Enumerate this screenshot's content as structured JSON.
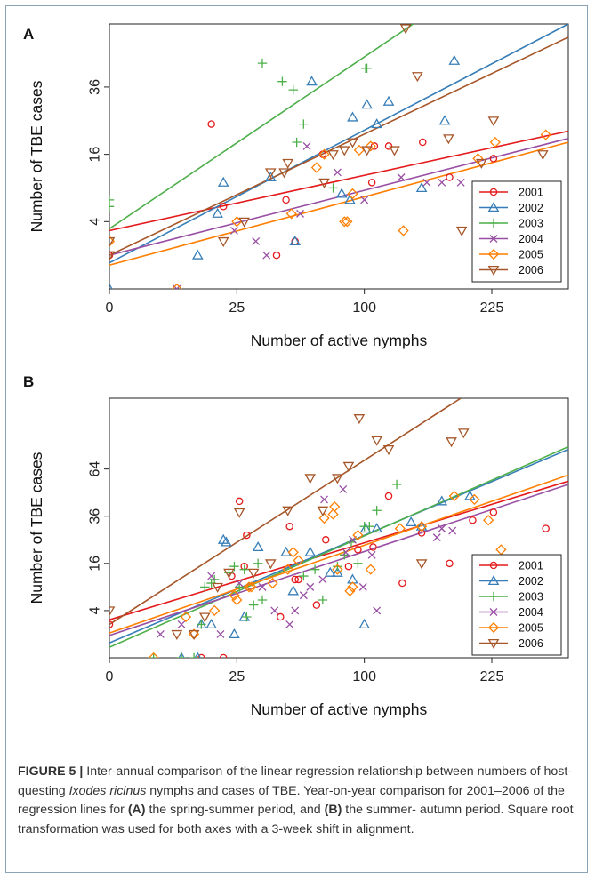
{
  "caption": {
    "label": "FIGURE 5 |",
    "s1": " Inter-annual comparison of the linear regression relationship between numbers of host-questing ",
    "species": "Ixodes ricinus",
    "s2": " nymphs and cases of TBE. Year-on-year comparison for 2001–2006 of the regression lines for ",
    "refA": "(A)",
    "s3": " the spring-summer period, and ",
    "refB": "(B)",
    "s4": " the summer- autumn period. Square root transformation was used for both axes with a 3-week shift in alignment."
  },
  "chart_data": [
    {
      "type": "scatter",
      "panel_label": "A",
      "xlabel": "Number of active nymphs",
      "ylabel": "Number of TBE cases",
      "axis_scale": "sqrt",
      "xlim": [
        0,
        324
      ],
      "ylim": [
        0,
        62
      ],
      "xticks": [
        0,
        25,
        100,
        225
      ],
      "yticks": [
        4,
        16,
        36
      ],
      "legend_position": "bottom-right",
      "series": [
        {
          "name": "2001",
          "color": "#e41a1c",
          "marker": "circle",
          "x": [
            0,
            16,
            20,
            43,
            48,
            53,
            70,
            106,
            108,
            120,
            151,
            178,
            227
          ],
          "y": [
            1,
            24,
            6,
            1,
            7,
            2,
            16,
            10,
            18,
            18,
            19,
            11,
            15
          ],
          "fit": [
            [
              0,
              3
            ],
            [
              324,
              22
            ]
          ]
        },
        {
          "name": "2002",
          "color": "#377eb8",
          "marker": "triangle",
          "x": [
            0,
            12,
            18,
            20,
            40,
            53,
            63,
            83,
            89,
            91,
            102,
            110,
            120,
            150,
            173,
            183
          ],
          "y": [
            0,
            1,
            5,
            10,
            11,
            2,
            38,
            8,
            7,
            26,
            30,
            24,
            31,
            9,
            25,
            46
          ],
          "fit": [
            [
              0,
              0.6
            ],
            [
              324,
              62
            ]
          ]
        },
        {
          "name": "2003",
          "color": "#4daf4a",
          "marker": "plus",
          "x": [
            0,
            0,
            36,
            46,
            52,
            54,
            58,
            77,
            101,
            102
          ],
          "y": [
            7,
            6,
            45,
            38,
            35,
            19,
            24,
            9,
            43,
            43
          ],
          "fit": [
            [
              0,
              3.2
            ],
            [
              142,
              62
            ]
          ]
        },
        {
          "name": "2004",
          "color": "#984ea3",
          "marker": "x",
          "x": [
            7,
            24,
            33,
            38,
            56,
            60,
            80,
            100,
            131,
            155,
            170,
            190
          ],
          "y": [
            0,
            3,
            2,
            1,
            5,
            18,
            12,
            7,
            11,
            10,
            10,
            10
          ],
          "fit": [
            [
              0,
              1
            ],
            [
              324,
              20
            ]
          ]
        },
        {
          "name": "2005",
          "color": "#ff7f00",
          "marker": "diamond",
          "x": [
            0,
            7,
            25,
            51,
            66,
            71,
            85,
            87,
            91,
            96,
            105,
            133,
            209,
            229,
            293
          ],
          "y": [
            2,
            0,
            4,
            5,
            13,
            16,
            4,
            4,
            8,
            17,
            18,
            3,
            15,
            19,
            21
          ],
          "fit": [
            [
              0,
              0.5
            ],
            [
              324,
              19
            ]
          ]
        },
        {
          "name": "2006",
          "color": "#a65628",
          "marker": "triangle-down",
          "x": [
            0,
            0,
            20,
            28,
            40,
            47,
            49,
            71,
            77,
            85,
            91,
            102,
            125,
            135,
            146,
            177,
            191,
            213,
            227,
            289
          ],
          "y": [
            2,
            1,
            2,
            4,
            12,
            12,
            14,
            10,
            16,
            17,
            19,
            17,
            17,
            60,
            40,
            20,
            3,
            14,
            25,
            16
          ],
          "fit": [
            [
              0,
              1
            ],
            [
              324,
              56
            ]
          ]
        }
      ]
    },
    {
      "type": "scatter",
      "panel_label": "B",
      "xlabel": "Number of active nymphs",
      "ylabel": "Number of TBE cases",
      "axis_scale": "sqrt",
      "xlim": [
        0,
        324
      ],
      "ylim": [
        0,
        121
      ],
      "xticks": [
        0,
        25,
        100,
        225
      ],
      "yticks": [
        4,
        16,
        36,
        64
      ],
      "legend_position": "bottom-right",
      "series": [
        {
          "name": "2001",
          "color": "#e41a1c",
          "marker": "circle",
          "x": [
            0,
            13,
            20,
            23,
            26,
            28,
            29,
            45,
            50,
            53,
            55,
            66,
            72,
            88,
            95,
            107,
            120,
            132,
            150,
            178,
            203,
            227,
            293
          ],
          "y": [
            2,
            0,
            0,
            12,
            44,
            15,
            27,
            3,
            31,
            11,
            11,
            5,
            25,
            15,
            21,
            22,
            47,
            10,
            28,
            16,
            34,
            38,
            30
          ],
          "fit": [
            [
              0,
              2.6
            ],
            [
              324,
              56
            ]
          ]
        },
        {
          "name": "2002",
          "color": "#377eb8",
          "marker": "triangle",
          "x": [
            8,
            12,
            13,
            16,
            20,
            21,
            24,
            28,
            34,
            48,
            52,
            62,
            75,
            80,
            91,
            100,
            101,
            110,
            140,
            150,
            170,
            200
          ],
          "y": [
            0,
            0,
            2,
            2,
            25,
            24,
            1,
            3,
            22,
            20,
            8,
            20,
            13,
            13,
            11,
            2,
            30,
            30,
            33,
            31,
            44,
            47
          ],
          "fit": [
            [
              0,
              0.4
            ],
            [
              324,
              78
            ]
          ]
        },
        {
          "name": "2003",
          "color": "#4daf4a",
          "marker": "plus",
          "x": [
            3,
            8,
            11,
            13,
            14,
            16,
            17,
            22,
            24,
            26,
            28,
            29,
            32,
            34,
            36,
            58,
            65,
            70,
            80,
            85,
            90,
            95,
            100,
            104,
            110,
            127
          ],
          "y": [
            0,
            0,
            0,
            2,
            9,
            10,
            11,
            13,
            15,
            9,
            14,
            3,
            5,
            16,
            6,
            12,
            14,
            6,
            15,
            19,
            24,
            16,
            31,
            31,
            39,
            54
          ],
          "fit": [
            [
              0,
              0.2
            ],
            [
              324,
              80
            ]
          ]
        },
        {
          "name": "2004",
          "color": "#984ea3",
          "marker": "x",
          "x": [
            4,
            8,
            16,
            19,
            26,
            36,
            42,
            50,
            53,
            58,
            62,
            70,
            71,
            84,
            86,
            91,
            99,
            106,
            110,
            165,
            170,
            181
          ],
          "y": [
            1,
            2,
            12,
            1,
            10,
            9,
            4,
            2,
            4,
            7,
            9,
            11,
            45,
            51,
            20,
            25,
            9,
            19,
            4,
            26,
            30,
            29
          ],
          "fit": [
            [
              0,
              0.9
            ],
            [
              324,
              54
            ]
          ]
        },
        {
          "name": "2005",
          "color": "#ff7f00",
          "marker": "diamond",
          "x": [
            3,
            9,
            11,
            17,
            24,
            25,
            30,
            31,
            41,
            49,
            52,
            55,
            71,
            77,
            78,
            80,
            89,
            91,
            95,
            105,
            130,
            150,
            183,
            205,
            221,
            236
          ],
          "y": [
            0,
            3,
            1,
            4,
            7,
            6,
            9,
            9,
            10,
            14,
            20,
            17,
            35,
            37,
            41,
            14,
            8,
            9,
            27,
            14,
            30,
            31,
            47,
            45,
            34,
            21
          ],
          "fit": [
            [
              0,
              1.1
            ],
            [
              324,
              60
            ]
          ]
        },
        {
          "name": "2006",
          "color": "#a65628",
          "marker": "triangle-down",
          "x": [
            0,
            7,
            11,
            14,
            18,
            22,
            26,
            32,
            40,
            49,
            62,
            70,
            80,
            88,
            96,
            110,
            120,
            150,
            180,
            193
          ],
          "y": [
            4,
            1,
            1,
            3,
            9,
            13,
            38,
            13,
            16,
            39,
            58,
            39,
            58,
            66,
            103,
            85,
            78,
            16,
            84,
            91
          ],
          "fit": [
            [
              0,
              2
            ],
            [
              190,
              121
            ]
          ]
        }
      ]
    }
  ]
}
